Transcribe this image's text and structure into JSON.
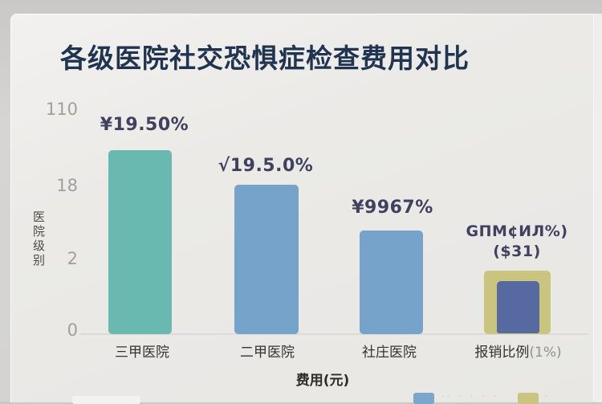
{
  "title": "各级医院社交恐惧症检查费用对比",
  "colors": {
    "background": "#e9e8e5",
    "title_text": "#1f3450",
    "value_label_text": "#40405f",
    "axis_tick_text": "#a09f9b",
    "bar_teal": "#69b9b0",
    "bar_blue": "#75a3ca",
    "bar_olive": "#c9c57e",
    "bar_inner_navy": "#5769a1"
  },
  "chart_data": {
    "type": "bar",
    "title": "各级医院社交恐惧症检查费用对比",
    "xlabel": "费用(元)",
    "ylabel": "医院级别",
    "y_ticks": [
      "110",
      "18",
      "2",
      "0"
    ],
    "grid": false,
    "legend_position": "bottom-right (clipped at image edge)",
    "categories": [
      "三甲医院",
      "二甲医院",
      "社庄医院",
      "报销比例(1%)"
    ],
    "bars": [
      {
        "category": "三甲医院",
        "value_label": "¥19.50%",
        "relative_height": 1.0,
        "color": "#69b9b0"
      },
      {
        "category": "二甲医院",
        "value_label": "√19.5.0%",
        "relative_height": 0.81,
        "color": "#75a3ca"
      },
      {
        "category": "社庄医院",
        "value_label": "¥9967%",
        "relative_height": 0.56,
        "color": "#75a3ca"
      },
      {
        "category": "报销比例(1%)",
        "value_label": "GΠМ¢ИЛ%)",
        "value_label2": "($31)",
        "relative_height": 0.34,
        "color": "#c9c57e",
        "inner_color": "#5769a1"
      }
    ],
    "x_labels": [
      {
        "text": "三甲医院"
      },
      {
        "text": "二甲医院"
      },
      {
        "text": "社庄医院"
      },
      {
        "text": "报销比例",
        "suffix": "(1%)"
      }
    ]
  },
  "legend": {
    "items": [
      {
        "label": "·· · · · ·",
        "swatch": "#7ba6cc"
      },
      {
        "label": "·",
        "swatch": "#c9c57e"
      }
    ]
  }
}
